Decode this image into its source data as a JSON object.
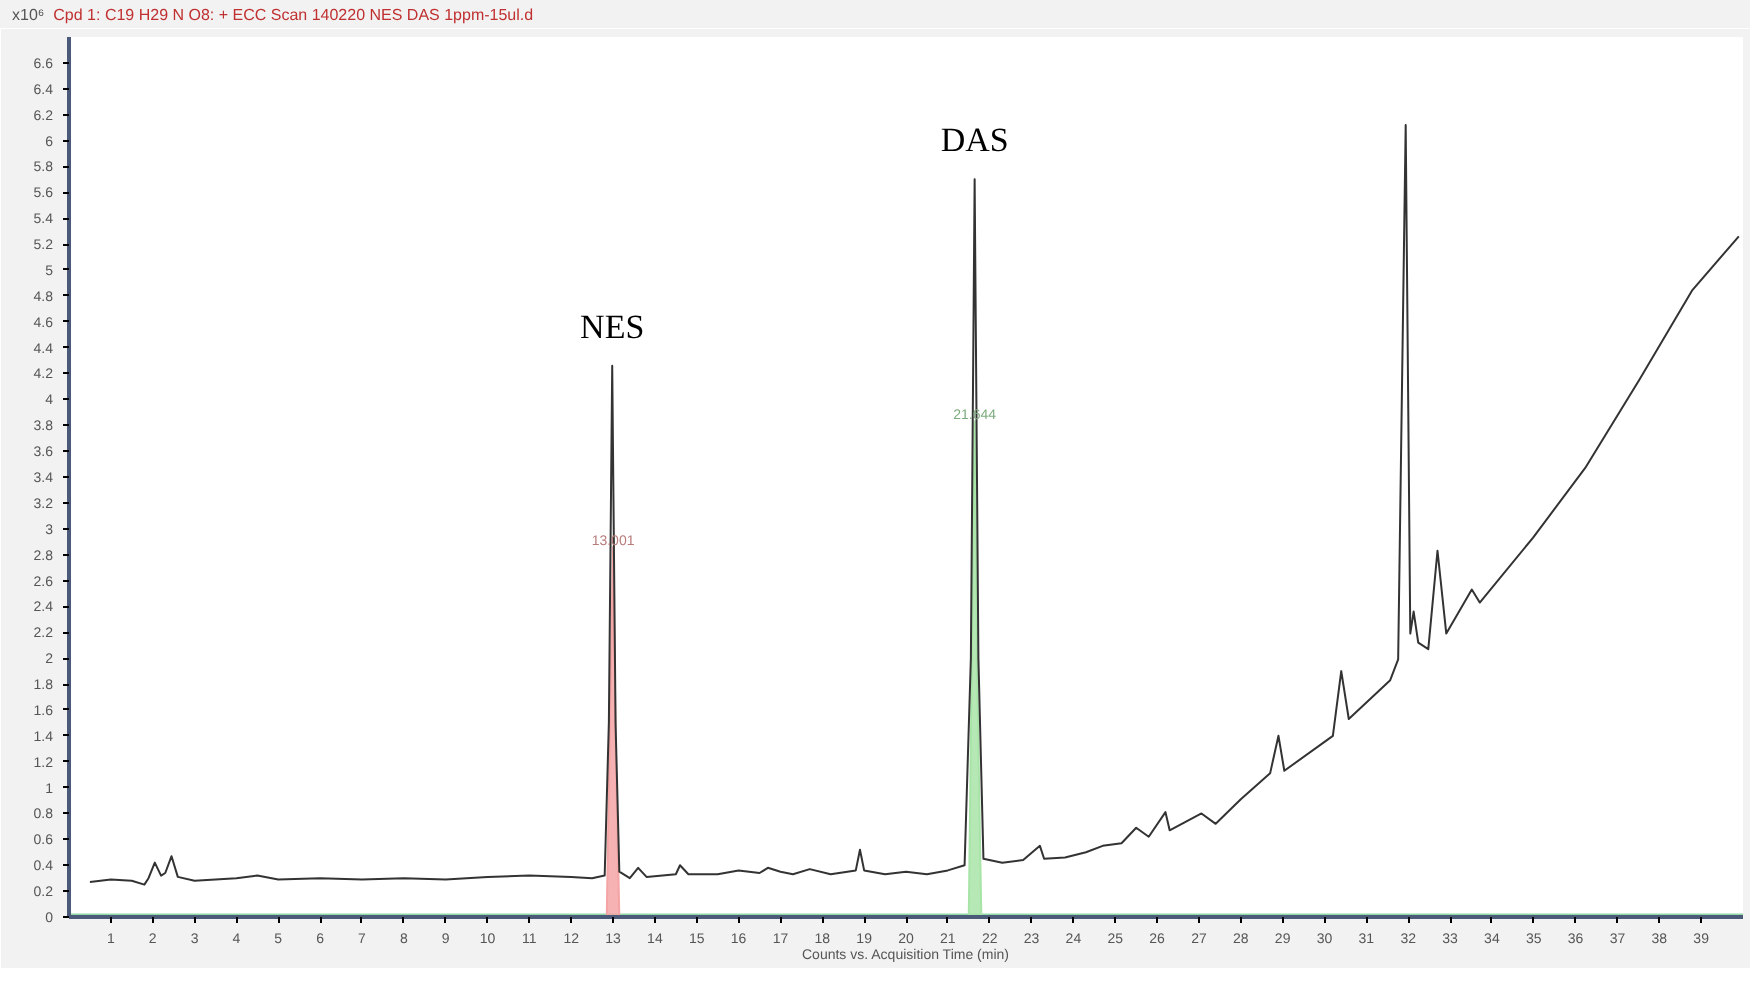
{
  "chart_data": {
    "type": "line",
    "title": "Cpd 1: C19 H29 N O8: + ECC Scan 140220 NES DAS 1ppm-15ul.d",
    "xlabel": "Counts vs. Acquisition Time (min)",
    "ylabel": "x10⁶",
    "xlim": [
      0,
      40
    ],
    "ylim": [
      0,
      6.8
    ],
    "xticks": [
      1,
      2,
      3,
      4,
      5,
      6,
      7,
      8,
      9,
      10,
      11,
      12,
      13,
      14,
      15,
      16,
      17,
      18,
      19,
      20,
      21,
      22,
      23,
      24,
      25,
      26,
      27,
      28,
      29,
      30,
      31,
      32,
      33,
      34,
      35,
      36,
      37,
      38,
      39
    ],
    "yticks": [
      0,
      0.2,
      0.4,
      0.6,
      0.8,
      1,
      1.2,
      1.4,
      1.6,
      1.8,
      2,
      2.2,
      2.4,
      2.6,
      2.8,
      3,
      3.2,
      3.4,
      3.6,
      3.8,
      4,
      4.2,
      4.4,
      4.6,
      4.8,
      5,
      5.2,
      5.4,
      5.6,
      5.8,
      6,
      6.2,
      6.4,
      6.6
    ],
    "grid": false,
    "marker": "none",
    "line_style": "solid",
    "series": [
      {
        "type": "line",
        "color": "#90d8a8",
        "x": [
          0,
          40
        ],
        "values": [
          0.02,
          0.02
        ]
      },
      {
        "type": "area",
        "color": "#f4a4a4",
        "x": [
          12.85,
          12.92,
          13.0,
          13.07,
          13.15
        ],
        "values": [
          0,
          1.4,
          2.86,
          1.2,
          0
        ]
      },
      {
        "type": "area",
        "color": "#a8e4a8",
        "x": [
          21.5,
          21.57,
          21.64,
          21.71,
          21.8
        ],
        "values": [
          0,
          1.9,
          3.83,
          1.7,
          0
        ]
      },
      {
        "color": "#333333",
        "x": [
          0.5,
          1.0,
          1.5,
          1.8,
          1.9,
          2.05,
          2.2,
          2.3,
          2.45,
          2.6,
          3.0,
          4.0,
          4.5,
          5,
          6,
          7,
          8,
          9,
          10,
          11,
          12,
          12.5,
          12.8,
          12.9,
          12.98,
          13.06,
          13.15,
          13.4,
          13.6,
          13.8,
          14.5,
          14.6,
          14.8,
          15.5,
          16,
          16.5,
          16.7,
          17,
          17.3,
          17.7,
          18.2,
          18.8,
          18.9,
          19.0,
          19.5,
          20,
          20.5,
          21,
          21.4,
          21.55,
          21.64,
          21.73,
          21.85,
          22.3,
          22.8,
          23.2,
          23.3,
          23.8,
          24.3,
          24.7,
          25.15,
          25.5,
          25.8,
          26.2,
          26.3,
          27.06,
          27.4,
          28.0,
          28.7,
          28.9,
          29.04,
          30.2,
          30.4,
          30.58,
          31.57,
          31.76,
          31.94,
          32.05,
          32.13,
          32.24,
          32.48,
          32.7,
          32.91,
          33.52,
          33.71,
          34.98,
          36.23,
          37.52,
          38.78,
          39.9
        ],
        "values": [
          0.27,
          0.29,
          0.28,
          0.25,
          0.3,
          0.42,
          0.32,
          0.34,
          0.47,
          0.31,
          0.28,
          0.3,
          0.32,
          0.29,
          0.3,
          0.29,
          0.3,
          0.29,
          0.31,
          0.32,
          0.31,
          0.3,
          0.32,
          1.5,
          4.26,
          1.5,
          0.35,
          0.3,
          0.38,
          0.31,
          0.33,
          0.4,
          0.33,
          0.33,
          0.36,
          0.34,
          0.38,
          0.35,
          0.33,
          0.37,
          0.33,
          0.36,
          0.52,
          0.36,
          0.33,
          0.35,
          0.33,
          0.36,
          0.4,
          2.0,
          5.7,
          2.0,
          0.45,
          0.42,
          0.44,
          0.55,
          0.45,
          0.46,
          0.5,
          0.55,
          0.57,
          0.69,
          0.62,
          0.81,
          0.67,
          0.8,
          0.72,
          0.91,
          1.11,
          1.4,
          1.13,
          1.4,
          1.9,
          1.53,
          1.83,
          1.99,
          6.12,
          2.19,
          2.36,
          2.12,
          2.07,
          2.83,
          2.19,
          2.53,
          2.43,
          2.93,
          3.47,
          4.15,
          4.84,
          5.26
        ]
      }
    ],
    "annotations": [
      {
        "text": "NES",
        "x": 12.98,
        "y": 4.26
      },
      {
        "text": "DAS",
        "x": 21.64,
        "y": 5.7
      },
      {
        "text": "13.001",
        "x": 13.0,
        "y": 2.86
      },
      {
        "text": "21.644",
        "x": 21.64,
        "y": 3.83
      }
    ]
  }
}
